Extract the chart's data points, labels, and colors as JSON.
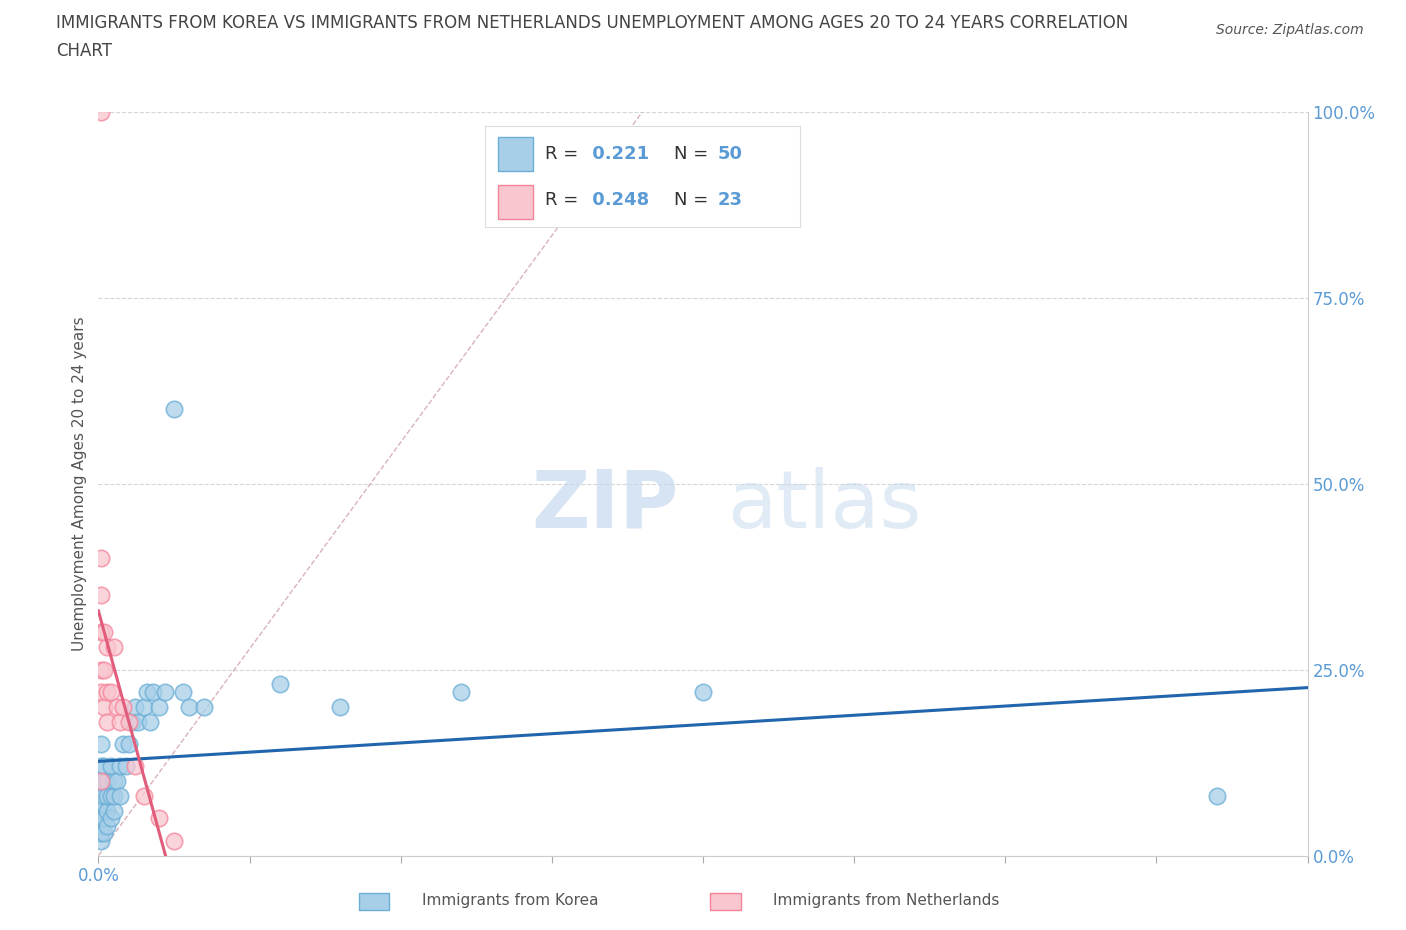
{
  "title_line1": "IMMIGRANTS FROM KOREA VS IMMIGRANTS FROM NETHERLANDS UNEMPLOYMENT AMONG AGES 20 TO 24 YEARS CORRELATION",
  "title_line2": "CHART",
  "source": "Source: ZipAtlas.com",
  "ylabel": "Unemployment Among Ages 20 to 24 years",
  "xlabel_korea": "Immigrants from Korea",
  "xlabel_netherlands": "Immigrants from Netherlands",
  "xlim": [
    0.0,
    0.4
  ],
  "ylim": [
    0.0,
    1.0
  ],
  "xtick_positions": [
    0.0,
    0.05,
    0.1,
    0.15,
    0.2,
    0.25,
    0.3,
    0.35,
    0.4
  ],
  "xtick_labels_show": {
    "0.0": "0.0%"
  },
  "yticks": [
    0.0,
    0.25,
    0.5,
    0.75,
    1.0
  ],
  "ytick_labels": [
    "0.0%",
    "25.0%",
    "50.0%",
    "75.0%",
    "100.0%"
  ],
  "korea_color": "#a8cfe8",
  "korea_edge_color": "#6aaed6",
  "netherlands_color": "#f9c6d0",
  "netherlands_edge_color": "#f4849a",
  "korea_line_color": "#2166ac",
  "netherlands_line_color": "#e05c7a",
  "ref_line_color": "#d0a0a8",
  "korea_R": 0.221,
  "korea_N": 50,
  "netherlands_R": 0.248,
  "netherlands_N": 23,
  "korea_x": [
    0.001,
    0.001,
    0.001,
    0.001,
    0.001,
    0.001,
    0.001,
    0.001,
    0.001,
    0.001,
    0.002,
    0.002,
    0.002,
    0.002,
    0.002,
    0.002,
    0.003,
    0.003,
    0.003,
    0.003,
    0.004,
    0.004,
    0.004,
    0.005,
    0.005,
    0.005,
    0.006,
    0.007,
    0.007,
    0.008,
    0.009,
    0.01,
    0.011,
    0.012,
    0.013,
    0.015,
    0.016,
    0.017,
    0.018,
    0.02,
    0.022,
    0.025,
    0.028,
    0.03,
    0.035,
    0.06,
    0.08,
    0.12,
    0.2,
    0.37
  ],
  "korea_y": [
    0.02,
    0.03,
    0.04,
    0.05,
    0.06,
    0.07,
    0.08,
    0.1,
    0.12,
    0.15,
    0.03,
    0.05,
    0.07,
    0.08,
    0.1,
    0.12,
    0.04,
    0.06,
    0.08,
    0.1,
    0.05,
    0.08,
    0.12,
    0.06,
    0.08,
    0.1,
    0.1,
    0.08,
    0.12,
    0.15,
    0.12,
    0.15,
    0.18,
    0.2,
    0.18,
    0.2,
    0.22,
    0.18,
    0.22,
    0.2,
    0.22,
    0.6,
    0.22,
    0.2,
    0.2,
    0.23,
    0.2,
    0.22,
    0.22,
    0.08
  ],
  "netherlands_x": [
    0.001,
    0.001,
    0.001,
    0.001,
    0.001,
    0.001,
    0.002,
    0.002,
    0.002,
    0.003,
    0.003,
    0.003,
    0.004,
    0.005,
    0.006,
    0.007,
    0.008,
    0.01,
    0.012,
    0.015,
    0.02,
    0.025,
    0.001
  ],
  "netherlands_y": [
    0.4,
    0.35,
    0.3,
    0.25,
    0.22,
    0.1,
    0.3,
    0.25,
    0.2,
    0.28,
    0.22,
    0.18,
    0.22,
    0.28,
    0.2,
    0.18,
    0.2,
    0.18,
    0.12,
    0.08,
    0.05,
    0.02,
    1.0
  ],
  "watermark_zip": "ZIP",
  "watermark_atlas": "atlas",
  "background_color": "#ffffff",
  "grid_color": "#cccccc",
  "title_color": "#444444",
  "axis_label_color": "#555555",
  "tick_color": "#5b9bd5",
  "legend_text_color": "#5b9bd5",
  "legend_label_color": "#333333"
}
